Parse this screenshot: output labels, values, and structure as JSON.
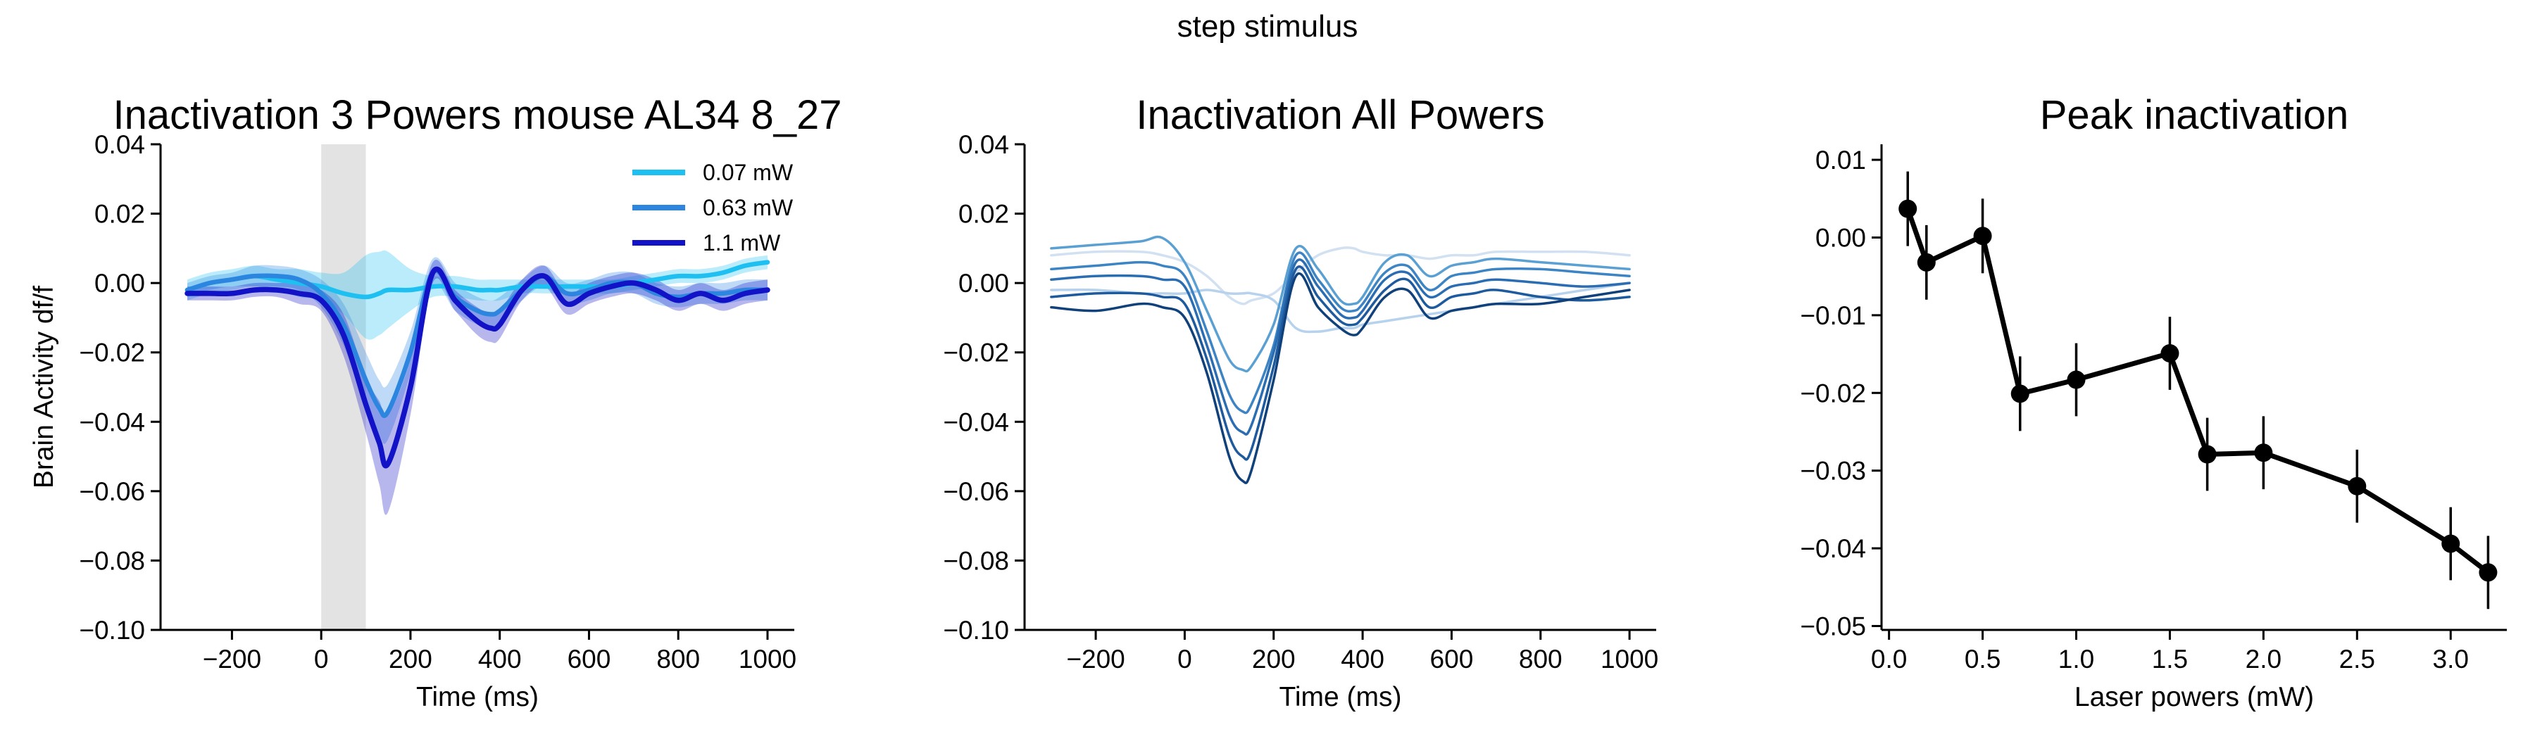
{
  "figure": {
    "suptitle": "step stimulus"
  },
  "chart_data": [
    {
      "type": "line",
      "title": "Inactivation 3 Powers mouse AL34 8_27",
      "xlabel": "Time (ms)",
      "ylabel": "Brain Activity df/f",
      "xlim": [
        -360,
        1060
      ],
      "ylim": [
        -0.1,
        0.04
      ],
      "xticks": [
        -200,
        0,
        200,
        400,
        600,
        800,
        1000
      ],
      "yticks": [
        -0.1,
        -0.08,
        -0.06,
        -0.04,
        -0.02,
        0.0,
        0.02,
        0.04
      ],
      "ytick_labels": [
        "−0.10",
        "−0.08",
        "−0.06",
        "−0.04",
        "−0.02",
        "0.00",
        "0.02",
        "0.04"
      ],
      "xtick_labels": [
        "−200",
        "0",
        "200",
        "400",
        "600",
        "800",
        "1000"
      ],
      "stim_window": [
        0,
        100
      ],
      "stim_color": "#e3e3e3",
      "legend_position": "top-right",
      "x": [
        -300,
        -250,
        -200,
        -150,
        -100,
        -50,
        0,
        50,
        100,
        130,
        150,
        200,
        250,
        300,
        350,
        380,
        400,
        450,
        500,
        550,
        600,
        650,
        700,
        750,
        800,
        850,
        900,
        950,
        1000
      ],
      "series": [
        {
          "name": "0.07 mW",
          "color": "#1ec0f2",
          "values": [
            -0.002,
            0.0,
            0.001,
            0.002,
            0.001,
            0.0,
            -0.001,
            -0.003,
            -0.004,
            -0.003,
            -0.002,
            -0.002,
            -0.001,
            -0.001,
            -0.002,
            -0.002,
            -0.002,
            -0.001,
            -0.001,
            -0.001,
            -0.001,
            -0.001,
            0.0,
            0.001,
            0.002,
            0.002,
            0.003,
            0.005,
            0.006
          ],
          "band": [
            0.003,
            0.003,
            0.003,
            0.003,
            0.003,
            0.004,
            0.004,
            0.006,
            0.012,
            0.012,
            0.011,
            0.006,
            0.003,
            0.003,
            0.003,
            0.003,
            0.003,
            0.002,
            0.002,
            0.002,
            0.002,
            0.002,
            0.002,
            0.002,
            0.002,
            0.002,
            0.002,
            0.002,
            0.002
          ]
        },
        {
          "name": "0.63 mW",
          "color": "#2c86e0",
          "values": [
            -0.002,
            0.0,
            0.001,
            0.002,
            0.002,
            0.001,
            -0.003,
            -0.012,
            -0.028,
            -0.036,
            -0.037,
            -0.02,
            0.003,
            -0.004,
            -0.008,
            -0.009,
            -0.008,
            -0.002,
            0.002,
            -0.003,
            -0.002,
            0.0,
            0.0,
            -0.003,
            -0.004,
            -0.003,
            -0.003,
            -0.002,
            -0.002
          ],
          "band": [
            0.002,
            0.002,
            0.002,
            0.003,
            0.003,
            0.003,
            0.004,
            0.006,
            0.008,
            0.008,
            0.008,
            0.006,
            0.004,
            0.004,
            0.004,
            0.004,
            0.004,
            0.003,
            0.003,
            0.003,
            0.003,
            0.003,
            0.003,
            0.003,
            0.003,
            0.003,
            0.003,
            0.003,
            0.003
          ]
        },
        {
          "name": "1.1 mW",
          "color": "#1212c6",
          "values": [
            -0.003,
            -0.003,
            -0.003,
            -0.002,
            -0.002,
            -0.003,
            -0.005,
            -0.015,
            -0.035,
            -0.046,
            -0.052,
            -0.03,
            0.003,
            -0.005,
            -0.011,
            -0.013,
            -0.012,
            -0.002,
            0.002,
            -0.006,
            -0.003,
            -0.001,
            0.0,
            -0.002,
            -0.005,
            -0.003,
            -0.005,
            -0.003,
            -0.002
          ],
          "band": [
            0.002,
            0.002,
            0.002,
            0.002,
            0.002,
            0.003,
            0.003,
            0.006,
            0.008,
            0.012,
            0.014,
            0.008,
            0.003,
            0.003,
            0.004,
            0.004,
            0.004,
            0.003,
            0.003,
            0.003,
            0.003,
            0.003,
            0.003,
            0.003,
            0.003,
            0.003,
            0.003,
            0.003,
            0.003
          ]
        }
      ]
    },
    {
      "type": "line",
      "title": "Inactivation All Powers",
      "xlabel": "Time (ms)",
      "ylabel": "",
      "xlim": [
        -360,
        1060
      ],
      "ylim": [
        -0.1,
        0.04
      ],
      "xticks": [
        -200,
        0,
        200,
        400,
        600,
        800,
        1000
      ],
      "yticks": [
        -0.1,
        -0.08,
        -0.06,
        -0.04,
        -0.02,
        0.0,
        0.02,
        0.04
      ],
      "ytick_labels": [
        "−0.10",
        "−0.08",
        "−0.06",
        "−0.04",
        "−0.02",
        "0.00",
        "0.02",
        "0.04"
      ],
      "xtick_labels": [
        "−200",
        "0",
        "200",
        "400",
        "600",
        "800",
        "1000"
      ],
      "x": [
        -300,
        -200,
        -100,
        -50,
        0,
        50,
        100,
        130,
        150,
        200,
        250,
        300,
        350,
        380,
        400,
        450,
        500,
        550,
        600,
        650,
        700,
        800,
        900,
        1000
      ],
      "series": [
        {
          "color": "#d2e1f2",
          "values": [
            0.008,
            0.009,
            0.009,
            0.008,
            0.006,
            0.002,
            -0.004,
            -0.006,
            -0.005,
            -0.003,
            0.003,
            0.008,
            0.01,
            0.01,
            0.009,
            0.008,
            0.008,
            0.007,
            0.008,
            0.008,
            0.009,
            0.009,
            0.009,
            0.008
          ]
        },
        {
          "color": "#b7d2ec",
          "values": [
            -0.002,
            -0.002,
            -0.003,
            -0.003,
            -0.003,
            -0.002,
            -0.003,
            -0.003,
            -0.003,
            -0.005,
            -0.013,
            -0.014,
            -0.013,
            -0.013,
            -0.012,
            -0.011,
            -0.01,
            -0.009,
            -0.008,
            -0.007,
            -0.006,
            -0.004,
            -0.002,
            0.0
          ]
        },
        {
          "color": "#5aa0d2",
          "values": [
            0.01,
            0.011,
            0.012,
            0.013,
            0.006,
            -0.008,
            -0.022,
            -0.025,
            -0.024,
            -0.012,
            0.01,
            0.004,
            -0.005,
            -0.006,
            -0.004,
            0.006,
            0.008,
            0.002,
            0.005,
            0.006,
            0.007,
            0.006,
            0.005,
            0.004
          ]
        },
        {
          "color": "#3c84c4",
          "values": [
            0.004,
            0.005,
            0.006,
            0.005,
            0.002,
            -0.014,
            -0.032,
            -0.037,
            -0.035,
            -0.018,
            0.008,
            0.001,
            -0.007,
            -0.008,
            -0.006,
            0.003,
            0.005,
            -0.002,
            0.002,
            0.003,
            0.004,
            0.004,
            0.003,
            0.002
          ]
        },
        {
          "color": "#2b6db2",
          "values": [
            0.001,
            0.002,
            0.002,
            0.001,
            -0.001,
            -0.018,
            -0.038,
            -0.043,
            -0.041,
            -0.02,
            0.006,
            -0.001,
            -0.009,
            -0.01,
            -0.008,
            0.001,
            0.003,
            -0.004,
            -0.001,
            0.0,
            0.001,
            0.0,
            -0.001,
            0.0
          ]
        },
        {
          "color": "#1e5a9e",
          "values": [
            -0.004,
            -0.003,
            -0.003,
            -0.004,
            -0.006,
            -0.022,
            -0.044,
            -0.05,
            -0.048,
            -0.024,
            0.004,
            -0.004,
            -0.011,
            -0.012,
            -0.01,
            -0.002,
            0.001,
            -0.007,
            -0.004,
            -0.003,
            -0.002,
            -0.004,
            -0.005,
            -0.004
          ]
        },
        {
          "color": "#10417a",
          "values": [
            -0.007,
            -0.008,
            -0.006,
            -0.007,
            -0.01,
            -0.026,
            -0.05,
            -0.057,
            -0.054,
            -0.028,
            0.002,
            -0.007,
            -0.013,
            -0.015,
            -0.013,
            -0.004,
            -0.002,
            -0.01,
            -0.008,
            -0.007,
            -0.006,
            -0.006,
            -0.004,
            -0.002
          ]
        }
      ]
    },
    {
      "type": "line",
      "title": "Peak inactivation",
      "xlabel": "Laser powers (mW)",
      "ylabel": "",
      "xlim": [
        -0.04,
        3.3
      ],
      "ylim": [
        -0.0505,
        0.012
      ],
      "xticks": [
        0.0,
        0.5,
        1.0,
        1.5,
        2.0,
        2.5,
        3.0
      ],
      "yticks": [
        -0.05,
        -0.04,
        -0.03,
        -0.02,
        -0.01,
        0.0,
        0.01
      ],
      "ytick_labels": [
        "−0.05",
        "−0.04",
        "−0.03",
        "−0.02",
        "−0.01",
        "0.00",
        "0.01"
      ],
      "xtick_labels": [
        "0.0",
        "0.5",
        "1.0",
        "1.5",
        "2.0",
        "2.5",
        "3.0"
      ],
      "markers": true,
      "x": [
        0.1,
        0.2,
        0.5,
        0.7,
        1.0,
        1.5,
        1.7,
        2.0,
        2.5,
        3.0,
        3.2
      ],
      "series": [
        {
          "color": "#000000",
          "values": [
            0.0037,
            -0.0032,
            0.0002,
            -0.0201,
            -0.0183,
            -0.0149,
            -0.0279,
            -0.0277,
            -0.032,
            -0.0394,
            -0.0431
          ],
          "errors": [
            0.0048,
            0.0048,
            0.0048,
            0.0048,
            0.0047,
            0.0047,
            0.0047,
            0.0047,
            0.0047,
            0.0047,
            0.0047
          ]
        }
      ]
    }
  ]
}
